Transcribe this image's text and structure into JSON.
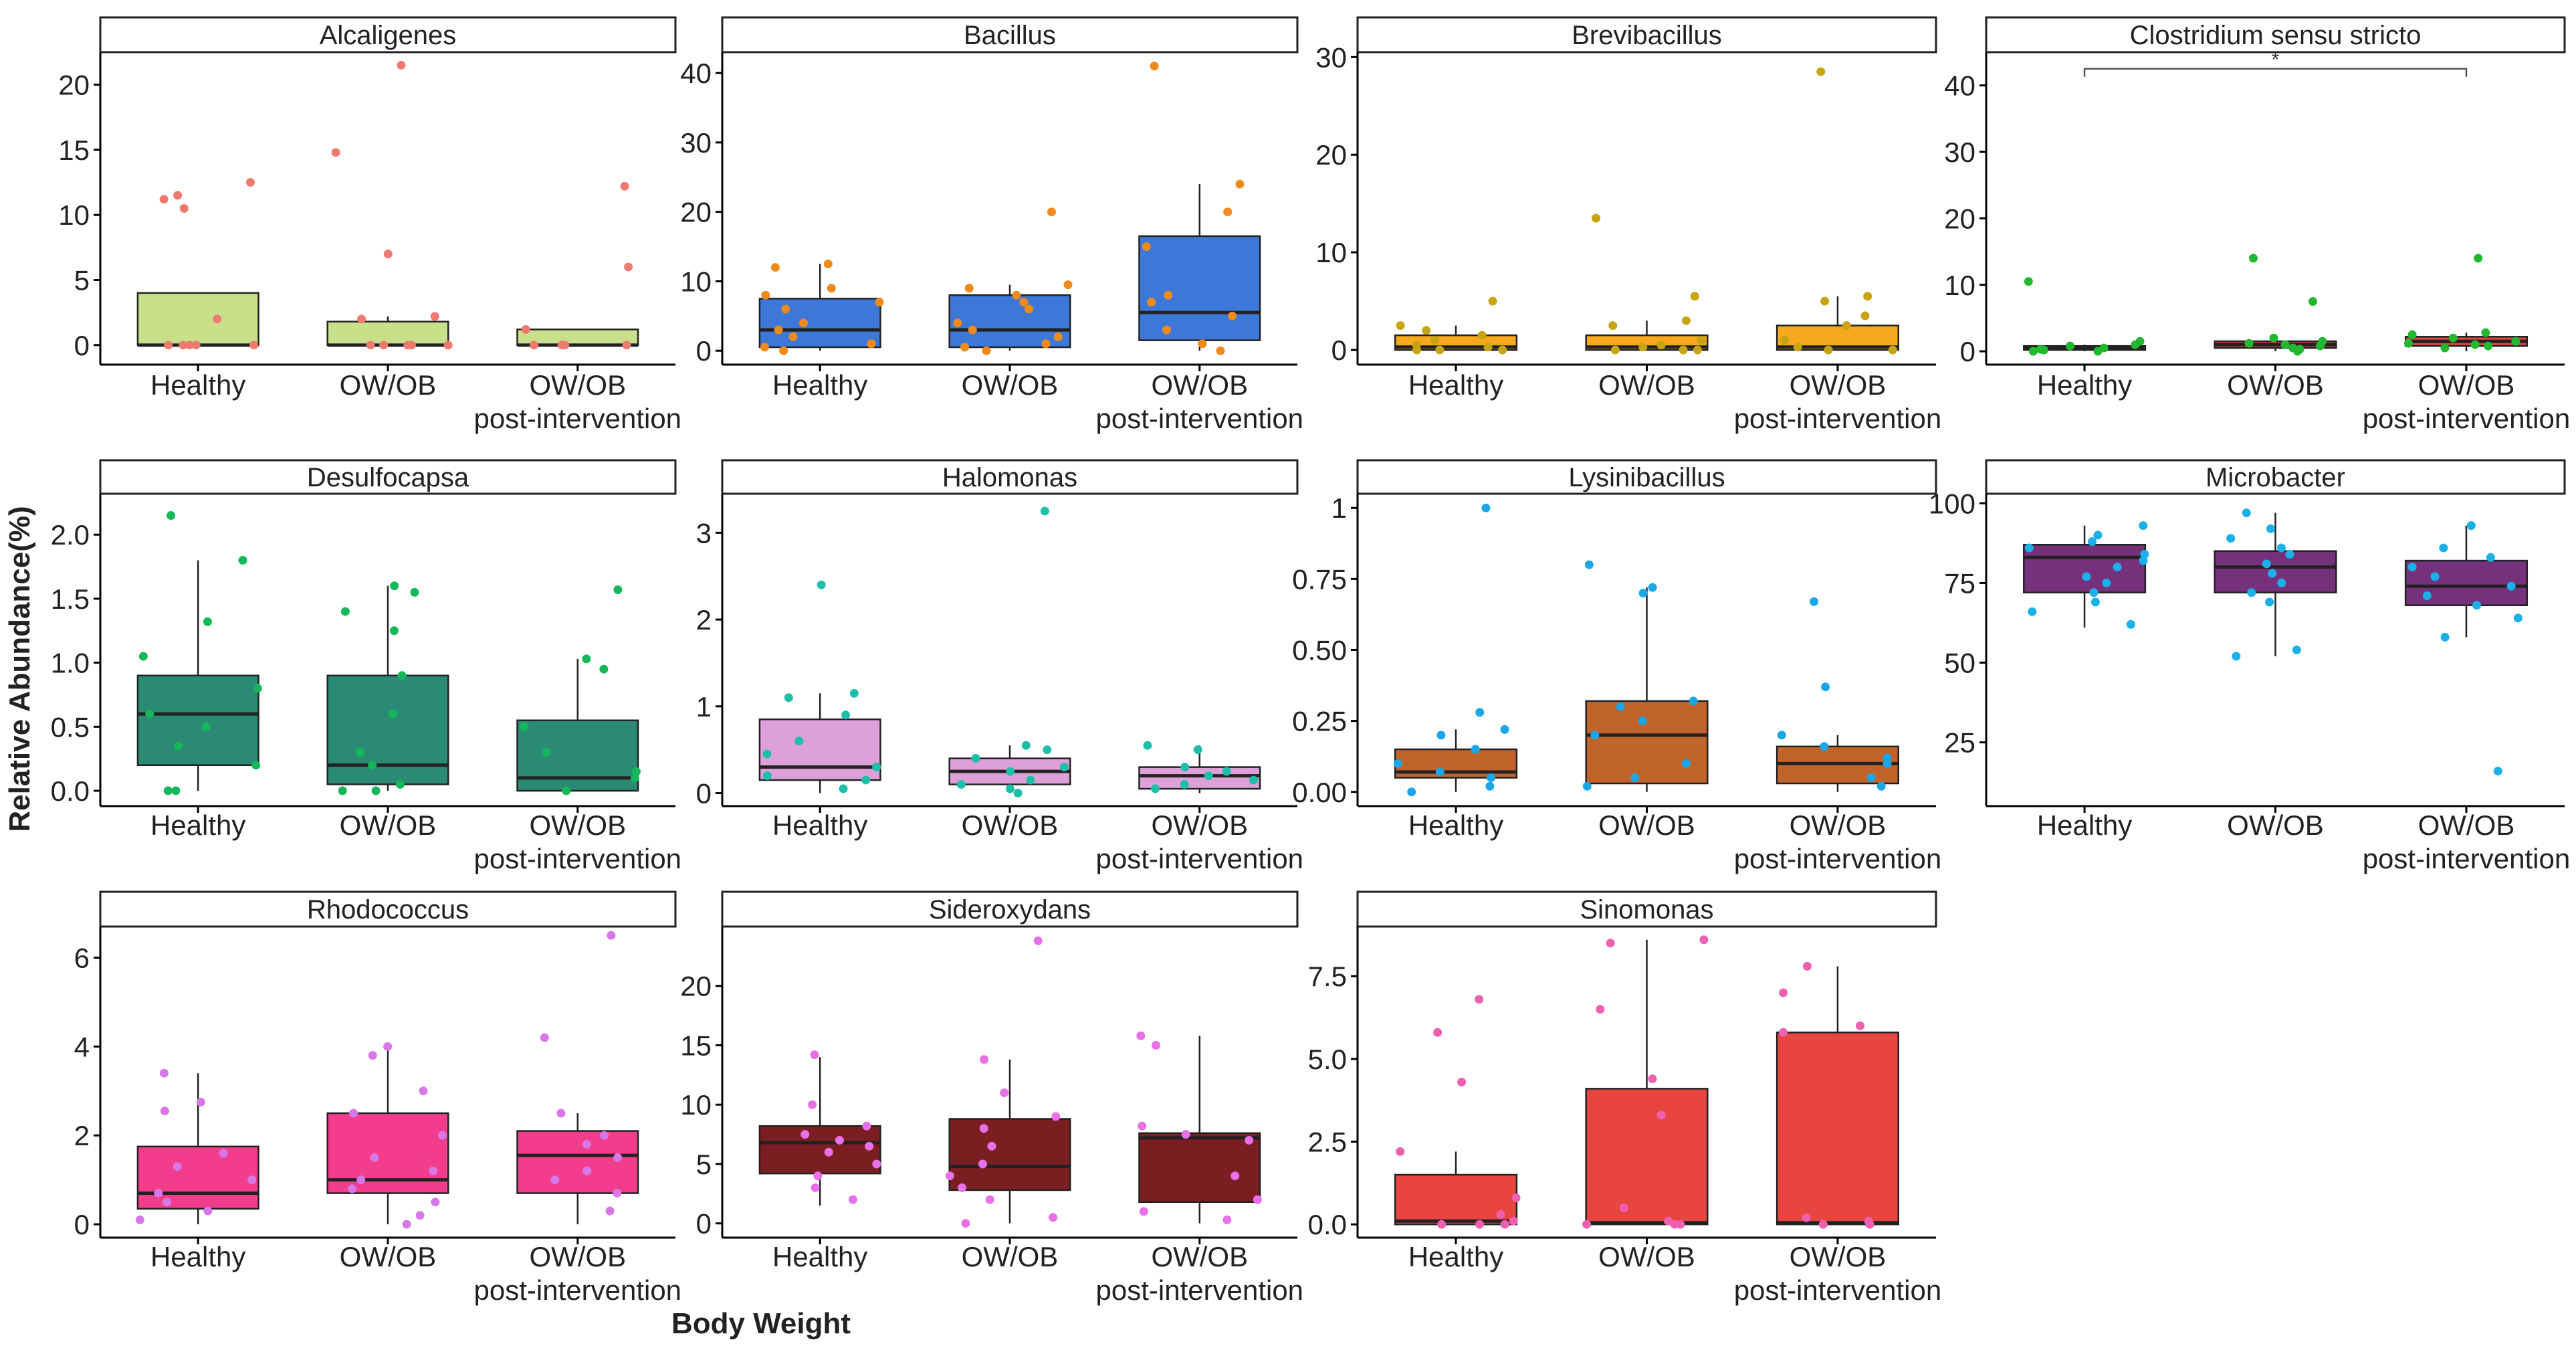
{
  "chart_data": {
    "type": "box",
    "ylabel": "Relative Abundance(%)",
    "xlabel": "Body Weight",
    "categories": [
      "Healthy",
      "OW/OB",
      "OW/OB\npost-intervention"
    ],
    "panels": [
      {
        "title": "Alcaligenes",
        "box_color": "#c8e08a",
        "point_color": "#f07a70",
        "ylim": [
          -1.5,
          22.5
        ],
        "yticks": [
          0,
          5,
          10,
          15,
          20
        ],
        "boxes": [
          {
            "q1": 0,
            "median": 0,
            "q3": 4,
            "lo": 0,
            "hi": 4,
            "points": [
              11.5,
              11.2,
              12.5,
              10.5,
              2,
              0,
              0,
              0,
              0,
              0
            ]
          },
          {
            "q1": 0,
            "median": 0,
            "q3": 1.8,
            "lo": 0,
            "hi": 2.2,
            "points": [
              21.5,
              14.8,
              7,
              2.2,
              2,
              0,
              0,
              0,
              0,
              0
            ]
          },
          {
            "q1": 0,
            "median": 0,
            "q3": 1.2,
            "lo": 0,
            "hi": 1.2,
            "points": [
              12.2,
              6,
              1.2,
              0,
              0,
              0,
              0
            ]
          }
        ]
      },
      {
        "title": "Bacillus",
        "box_color": "#3d78d8",
        "point_color": "#f08a1a",
        "ylim": [
          -2,
          43
        ],
        "yticks": [
          0,
          10,
          20,
          30,
          40
        ],
        "boxes": [
          {
            "q1": 0.5,
            "median": 3,
            "q3": 7.5,
            "lo": 0,
            "hi": 12.5,
            "points": [
              12.5,
              12,
              9,
              8,
              7,
              6,
              4,
              3,
              2,
              1,
              0.5,
              0
            ]
          },
          {
            "q1": 0.5,
            "median": 3,
            "q3": 8,
            "lo": 0,
            "hi": 9.5,
            "points": [
              20,
              9.5,
              9,
              8,
              7,
              6,
              4,
              3,
              2,
              1,
              0.5,
              0
            ]
          },
          {
            "q1": 1.5,
            "median": 5.5,
            "q3": 16.5,
            "lo": 0,
            "hi": 24,
            "points": [
              41,
              24,
              20,
              15,
              8,
              7,
              5,
              3,
              1,
              0
            ]
          }
        ]
      },
      {
        "title": "Brevibacillus",
        "box_color": "#f7a81c",
        "point_color": "#c7a512",
        "ylim": [
          -1.5,
          30.5
        ],
        "yticks": [
          0,
          10,
          20,
          30
        ],
        "boxes": [
          {
            "q1": 0,
            "median": 0.3,
            "q3": 1.5,
            "lo": 0,
            "hi": 2.5,
            "points": [
              5,
              2.5,
              2,
              1.5,
              1,
              0.5,
              0.3,
              0,
              0,
              0
            ]
          },
          {
            "q1": 0,
            "median": 0.3,
            "q3": 1.5,
            "lo": 0,
            "hi": 3,
            "points": [
              13.5,
              5.5,
              3,
              2.5,
              1,
              0.5,
              0.3,
              0,
              0,
              0
            ]
          },
          {
            "q1": 0,
            "median": 0.3,
            "q3": 2.5,
            "lo": 0,
            "hi": 5.5,
            "points": [
              28.5,
              5.5,
              5,
              3.5,
              2.5,
              1,
              0.3,
              0,
              0
            ]
          }
        ]
      },
      {
        "title": "Clostridium sensu stricto",
        "box_color": "#d8443f",
        "point_color": "#22b830",
        "ylim": [
          -2,
          45
        ],
        "yticks": [
          0,
          10,
          20,
          30,
          40
        ],
        "significance": {
          "from": 0,
          "to": 2,
          "y": 42.5,
          "label": "*"
        },
        "boxes": [
          {
            "q1": 0.2,
            "median": 0.5,
            "q3": 0.8,
            "lo": 0,
            "hi": 1,
            "points": [
              10.5,
              1.5,
              1,
              0.8,
              0.5,
              0.3,
              0.2,
              0,
              0
            ]
          },
          {
            "q1": 0.5,
            "median": 1,
            "q3": 1.5,
            "lo": 0,
            "hi": 2,
            "points": [
              14,
              7.5,
              2,
              1.5,
              1.2,
              1,
              0.8,
              0.5,
              0.3,
              0
            ]
          },
          {
            "q1": 0.8,
            "median": 1.5,
            "q3": 2.2,
            "lo": 0,
            "hi": 2.8,
            "points": [
              14,
              2.8,
              2.5,
              2,
              1.5,
              1.2,
              1,
              0.8,
              0.5
            ]
          }
        ]
      },
      {
        "title": "Desulfocapsa",
        "box_color": "#2b8a74",
        "point_color": "#14b85a",
        "ylim": [
          -0.12,
          2.32
        ],
        "yticks": [
          0.0,
          0.5,
          1.0,
          1.5,
          2.0
        ],
        "yticklabels": [
          "0.0",
          "0.5",
          "1.0",
          "1.5",
          "2.0"
        ],
        "boxes": [
          {
            "q1": 0.2,
            "median": 0.6,
            "q3": 0.9,
            "lo": 0,
            "hi": 1.8,
            "points": [
              2.15,
              1.8,
              1.32,
              1.05,
              0.8,
              0.6,
              0.5,
              0.35,
              0.2,
              0,
              0
            ]
          },
          {
            "q1": 0.05,
            "median": 0.2,
            "q3": 0.9,
            "lo": 0,
            "hi": 1.6,
            "points": [
              1.6,
              1.55,
              1.4,
              1.25,
              0.9,
              0.6,
              0.3,
              0.2,
              0.05,
              0,
              0
            ]
          },
          {
            "q1": 0,
            "median": 0.1,
            "q3": 0.55,
            "lo": 0,
            "hi": 1.03,
            "points": [
              1.57,
              1.03,
              0.95,
              0.5,
              0.3,
              0.15,
              0.1,
              0
            ]
          }
        ]
      },
      {
        "title": "Halomonas",
        "box_color": "#dda0d8",
        "point_color": "#1cc0a8",
        "ylim": [
          -0.15,
          3.45
        ],
        "yticks": [
          0,
          1,
          2,
          3
        ],
        "boxes": [
          {
            "q1": 0.15,
            "median": 0.3,
            "q3": 0.85,
            "lo": 0,
            "hi": 1.15,
            "points": [
              2.4,
              1.15,
              1.1,
              0.9,
              0.6,
              0.45,
              0.3,
              0.2,
              0.15,
              0.05
            ]
          },
          {
            "q1": 0.1,
            "median": 0.25,
            "q3": 0.4,
            "lo": 0,
            "hi": 0.55,
            "points": [
              3.25,
              0.55,
              0.5,
              0.4,
              0.3,
              0.25,
              0.15,
              0.1,
              0.05,
              0
            ]
          },
          {
            "q1": 0.05,
            "median": 0.2,
            "q3": 0.3,
            "lo": 0,
            "hi": 0.55,
            "points": [
              0.55,
              0.5,
              0.3,
              0.25,
              0.2,
              0.15,
              0.1,
              0.05
            ]
          }
        ]
      },
      {
        "title": "Lysinibacillus",
        "box_color": "#c0642c",
        "point_color": "#1aa6e8",
        "ylim": [
          -0.05,
          1.05
        ],
        "yticks": [
          0.0,
          0.25,
          0.5,
          0.75,
          1.0
        ],
        "yticklabels": [
          "0.00",
          "0.25",
          "0.50",
          "0.75",
          "1"
        ],
        "boxes": [
          {
            "q1": 0.05,
            "median": 0.07,
            "q3": 0.15,
            "lo": 0,
            "hi": 0.22,
            "points": [
              1.0,
              0.28,
              0.22,
              0.2,
              0.15,
              0.1,
              0.07,
              0.05,
              0.02,
              0
            ]
          },
          {
            "q1": 0.03,
            "median": 0.2,
            "q3": 0.32,
            "lo": 0,
            "hi": 0.72,
            "points": [
              0.8,
              0.72,
              0.7,
              0.32,
              0.3,
              0.25,
              0.2,
              0.1,
              0.05,
              0.02
            ]
          },
          {
            "q1": 0.03,
            "median": 0.1,
            "q3": 0.16,
            "lo": 0,
            "hi": 0.2,
            "points": [
              0.67,
              0.37,
              0.2,
              0.16,
              0.12,
              0.1,
              0.05,
              0.02
            ]
          }
        ]
      },
      {
        "title": "Microbacter",
        "box_color": "#76317d",
        "point_color": "#1ab0e8",
        "ylim": [
          5,
          103
        ],
        "yticks": [
          25,
          50,
          75,
          100
        ],
        "boxes": [
          {
            "q1": 72,
            "median": 83,
            "q3": 87,
            "lo": 61,
            "hi": 93,
            "points": [
              93,
              90,
              88,
              86,
              84,
              82,
              80,
              77,
              75,
              72,
              69,
              66,
              62
            ]
          },
          {
            "q1": 72,
            "median": 80,
            "q3": 85,
            "lo": 52,
            "hi": 97,
            "points": [
              97,
              92,
              89,
              86,
              84,
              81,
              78,
              75,
              72,
              69,
              54,
              52
            ]
          },
          {
            "q1": 68,
            "median": 74,
            "q3": 82,
            "lo": 58,
            "hi": 93,
            "points": [
              93,
              86,
              83,
              80,
              77,
              74,
              71,
              68,
              64,
              58,
              16
            ]
          }
        ]
      },
      {
        "title": "Rhodococcus",
        "box_color": "#f23c8c",
        "point_color": "#d878e8",
        "ylim": [
          -0.3,
          6.7
        ],
        "yticks": [
          0,
          2,
          4,
          6
        ],
        "boxes": [
          {
            "q1": 0.35,
            "median": 0.7,
            "q3": 1.75,
            "lo": 0,
            "hi": 3.4,
            "points": [
              3.4,
              2.75,
              2.55,
              1.6,
              1.3,
              1,
              0.7,
              0.5,
              0.3,
              0.1
            ]
          },
          {
            "q1": 0.7,
            "median": 1,
            "q3": 2.5,
            "lo": 0,
            "hi": 4,
            "points": [
              4,
              3.8,
              3,
              2.5,
              2,
              1.5,
              1.2,
              1,
              0.8,
              0.5,
              0.2,
              0
            ]
          },
          {
            "q1": 0.7,
            "median": 1.55,
            "q3": 2.1,
            "lo": 0,
            "hi": 2.5,
            "points": [
              6.5,
              4.2,
              2.5,
              2,
              1.8,
              1.5,
              1.2,
              1,
              0.7,
              0.3
            ]
          }
        ]
      },
      {
        "title": "Sideroxydans",
        "box_color": "#7b1e22",
        "point_color": "#e870e8",
        "ylim": [
          -1.2,
          25
        ],
        "yticks": [
          0,
          5,
          10,
          15,
          20
        ],
        "boxes": [
          {
            "q1": 4.2,
            "median": 6.8,
            "q3": 8.2,
            "lo": 1.5,
            "hi": 14,
            "points": [
              14.2,
              10,
              8.2,
              7.5,
              7,
              6.5,
              6,
              5,
              4,
              3,
              2
            ]
          },
          {
            "q1": 2.8,
            "median": 4.8,
            "q3": 8.8,
            "lo": 0,
            "hi": 13.8,
            "points": [
              23.8,
              13.8,
              11,
              9,
              8,
              6.5,
              5,
              4,
              3,
              2,
              0.5,
              0
            ]
          },
          {
            "q1": 1.8,
            "median": 7.2,
            "q3": 7.6,
            "lo": 0,
            "hi": 15.8,
            "points": [
              15.8,
              15,
              8.2,
              7.5,
              7,
              4,
              2,
              1,
              0.3
            ]
          }
        ]
      },
      {
        "title": "Sinomonas",
        "box_color": "#e84440",
        "point_color": "#f060b0",
        "ylim": [
          -0.4,
          9
        ],
        "yticks": [
          0.0,
          2.5,
          5.0,
          7.5
        ],
        "yticklabels": [
          "0.0",
          "2.5",
          "5.0",
          "7.5"
        ],
        "boxes": [
          {
            "q1": 0,
            "median": 0.1,
            "q3": 1.5,
            "lo": 0,
            "hi": 2.2,
            "points": [
              6.8,
              5.8,
              4.3,
              2.2,
              0.8,
              0.3,
              0.1,
              0,
              0,
              0
            ]
          },
          {
            "q1": 0,
            "median": 0.05,
            "q3": 4.1,
            "lo": 0,
            "hi": 8.6,
            "points": [
              8.6,
              8.5,
              6.5,
              4.4,
              3.3,
              0.5,
              0.1,
              0,
              0,
              0
            ]
          },
          {
            "q1": 0,
            "median": 0.05,
            "q3": 5.8,
            "lo": 0,
            "hi": 7.8,
            "points": [
              7.8,
              7,
              6,
              5.8,
              0.2,
              0.1,
              0,
              0
            ]
          }
        ]
      }
    ]
  }
}
